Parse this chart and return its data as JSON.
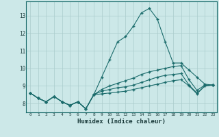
{
  "xlabel": "Humidex (Indice chaleur)",
  "background_color": "#cce8e8",
  "grid_color": "#aacccc",
  "line_color": "#1a6b6b",
  "x": [
    0,
    1,
    2,
    3,
    4,
    5,
    6,
    7,
    8,
    9,
    10,
    11,
    12,
    13,
    14,
    15,
    16,
    17,
    18,
    19,
    20,
    21,
    22,
    23
  ],
  "line1": [
    8.6,
    8.3,
    8.1,
    8.4,
    8.1,
    7.9,
    8.1,
    7.7,
    8.5,
    9.5,
    10.5,
    11.5,
    11.8,
    12.4,
    13.15,
    13.4,
    12.8,
    11.5,
    10.3,
    10.3,
    9.9,
    9.5,
    9.1,
    9.05
  ],
  "line2": [
    8.6,
    8.3,
    8.1,
    8.4,
    8.1,
    7.9,
    8.1,
    7.7,
    8.5,
    8.8,
    9.0,
    9.15,
    9.3,
    9.45,
    9.65,
    9.8,
    9.9,
    10.0,
    10.1,
    10.15,
    9.35,
    8.75,
    9.05,
    9.05
  ],
  "line3": [
    8.6,
    8.3,
    8.1,
    8.4,
    8.1,
    7.9,
    8.1,
    7.7,
    8.5,
    8.7,
    8.8,
    8.9,
    8.95,
    9.05,
    9.2,
    9.35,
    9.5,
    9.6,
    9.65,
    9.7,
    9.05,
    8.6,
    9.0,
    9.05
  ],
  "line4": [
    8.6,
    8.3,
    8.1,
    8.4,
    8.1,
    7.9,
    8.1,
    7.7,
    8.5,
    8.55,
    8.6,
    8.65,
    8.7,
    8.8,
    8.9,
    9.0,
    9.1,
    9.2,
    9.3,
    9.35,
    9.0,
    8.55,
    9.0,
    9.05
  ],
  "ylim": [
    7.5,
    13.8
  ],
  "yticks": [
    8,
    9,
    10,
    11,
    12,
    13
  ],
  "xticks": [
    0,
    1,
    2,
    3,
    4,
    5,
    6,
    7,
    8,
    9,
    10,
    11,
    12,
    13,
    14,
    15,
    16,
    17,
    18,
    19,
    20,
    21,
    22,
    23
  ]
}
